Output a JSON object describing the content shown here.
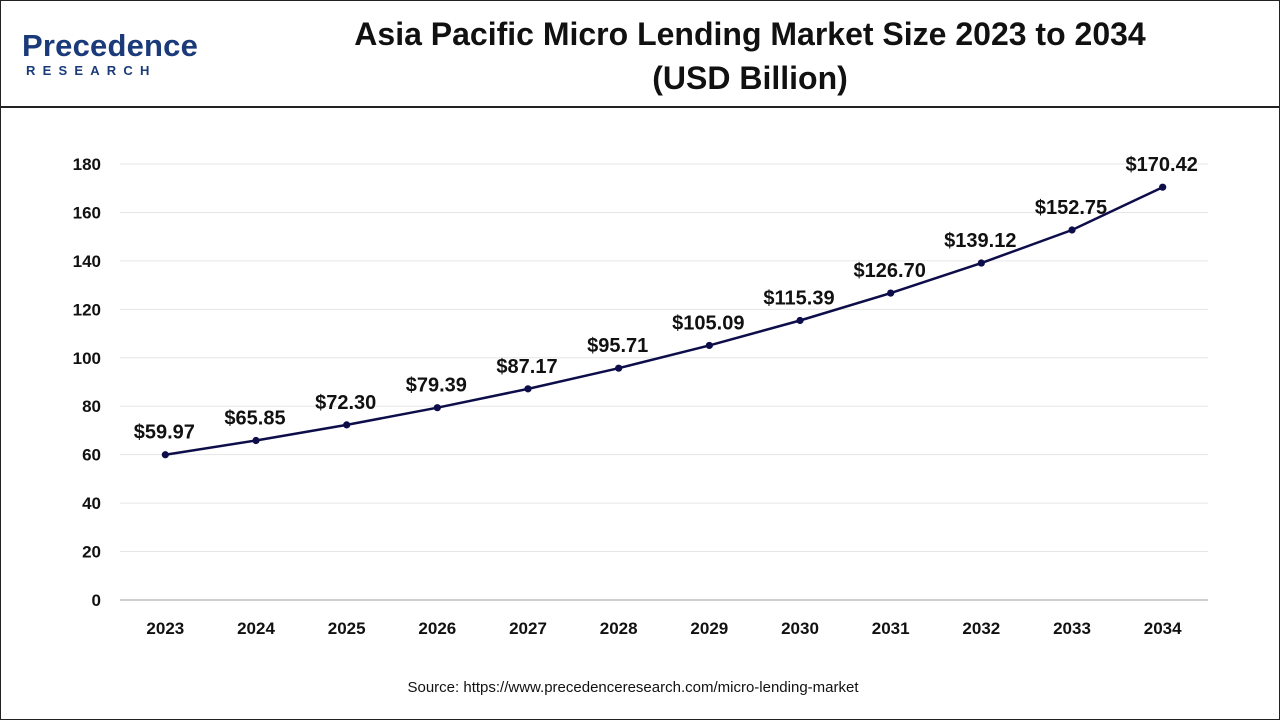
{
  "header": {
    "logo_main": "Precedence",
    "logo_sub": "RESEARCH",
    "title_line1": "Asia Pacific Micro Lending Market Size 2023 to 2034",
    "title_line2": "(USD Billion)"
  },
  "source": "Source: https://www.precedenceresearch.com/micro-lending-market",
  "colors": {
    "line": "#0d0d4a",
    "grid": "#e6e6e6",
    "text": "#111111"
  },
  "chart_data": {
    "type": "line",
    "title": "Asia Pacific Micro Lending Market Size 2023 to 2034 (USD Billion)",
    "categories": [
      "2023",
      "2024",
      "2025",
      "2026",
      "2027",
      "2028",
      "2029",
      "2030",
      "2031",
      "2032",
      "2033",
      "2034"
    ],
    "values": [
      59.97,
      65.85,
      72.3,
      79.39,
      87.17,
      95.71,
      105.09,
      115.39,
      126.7,
      139.12,
      152.75,
      170.42
    ],
    "data_labels": [
      "$59.97",
      "$65.85",
      "$72.30",
      "$79.39",
      "$87.17",
      "$95.71",
      "$105.09",
      "$115.39",
      "$126.70",
      "$139.12",
      "$152.75",
      "$170.42"
    ],
    "ylim": [
      0,
      180
    ],
    "yticks": [
      0,
      20,
      40,
      60,
      80,
      100,
      120,
      140,
      160,
      180
    ],
    "grid": true,
    "xlabel": "",
    "ylabel": ""
  }
}
